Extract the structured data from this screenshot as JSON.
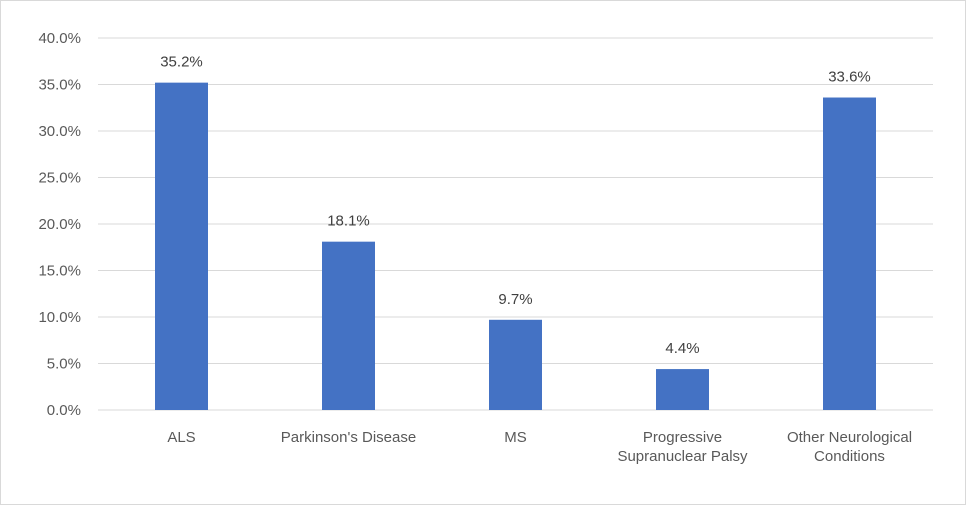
{
  "chart_data": {
    "type": "bar",
    "categories": [
      [
        "ALS"
      ],
      [
        "Parkinson's Disease"
      ],
      [
        "MS"
      ],
      [
        "Progressive",
        "Supranuclear Palsy"
      ],
      [
        "Other Neurological",
        "Conditions"
      ]
    ],
    "values": [
      35.2,
      18.1,
      9.7,
      4.4,
      33.6
    ],
    "data_labels": [
      "35.2%",
      "18.1%",
      "9.7%",
      "4.4%",
      "33.6%"
    ],
    "y_ticks": [
      "0.0%",
      "5.0%",
      "10.0%",
      "15.0%",
      "20.0%",
      "25.0%",
      "30.0%",
      "35.0%",
      "40.0%"
    ],
    "ylim": [
      0,
      40
    ],
    "grid": true,
    "legend": "none",
    "bar_color": "#4472c4"
  }
}
